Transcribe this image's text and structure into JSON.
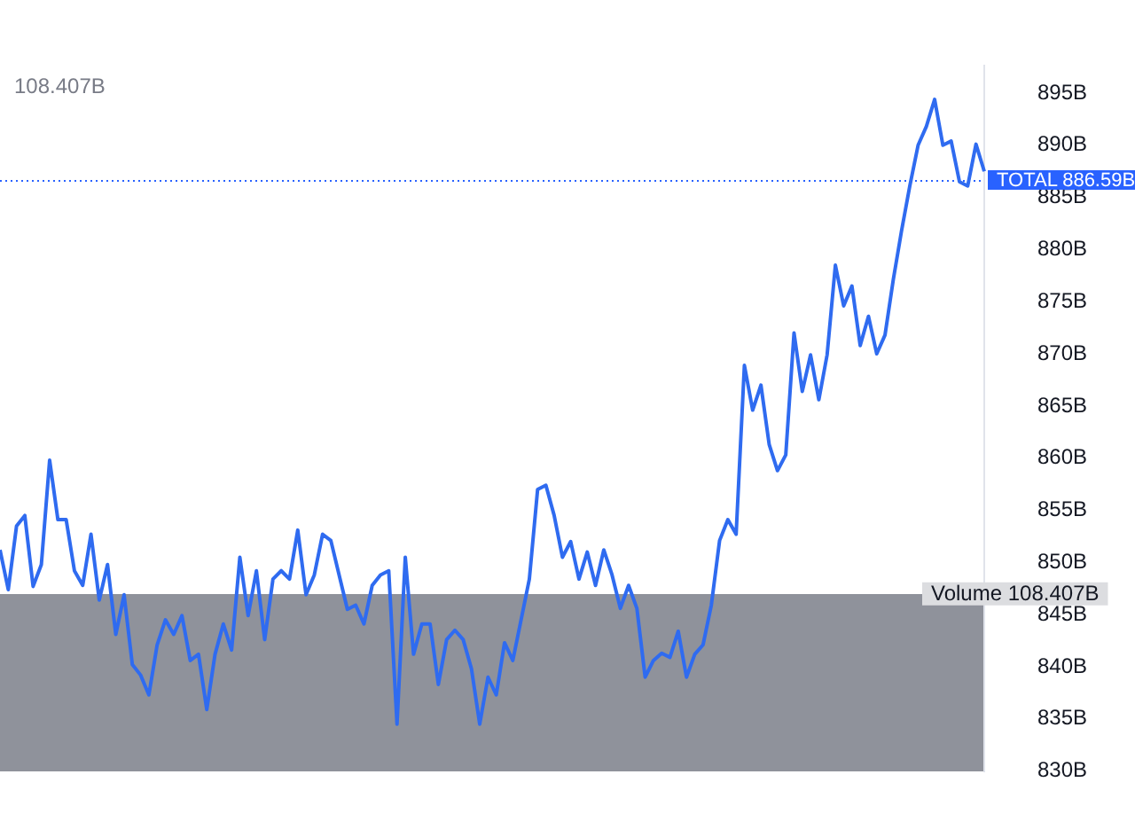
{
  "chart_data": {
    "type": "line",
    "ylim": [
      830,
      897.6
    ],
    "yticks": [
      {
        "value": 830,
        "label": "830B"
      },
      {
        "value": 835,
        "label": "835B"
      },
      {
        "value": 840,
        "label": "840B"
      },
      {
        "value": 845,
        "label": "845B"
      },
      {
        "value": 850,
        "label": "850B"
      },
      {
        "value": 855,
        "label": "855B"
      },
      {
        "value": 860,
        "label": "860B"
      },
      {
        "value": 865,
        "label": "865B"
      },
      {
        "value": 870,
        "label": "870B"
      },
      {
        "value": 875,
        "label": "875B"
      },
      {
        "value": 880,
        "label": "880B"
      },
      {
        "value": 885,
        "label": "885B"
      },
      {
        "value": 890,
        "label": "890B"
      },
      {
        "value": 895,
        "label": "895B"
      }
    ],
    "tick_labels": "y",
    "grid": false,
    "legend": false,
    "marker": "none",
    "annotations": [
      "108.407B",
      "Volume 108.407B"
    ],
    "ref_lines": [
      {
        "axis": "y",
        "value": 886.59,
        "label": "TOTAL 886.59B",
        "color": "#2962ff",
        "line_style": "dotted"
      }
    ],
    "categories": [
      null,
      null,
      null,
      null,
      null,
      null,
      null,
      null,
      null,
      null,
      null,
      null,
      null,
      null,
      null,
      null,
      null,
      null,
      null,
      null,
      null,
      null,
      null,
      null,
      null,
      null,
      null,
      null,
      null,
      null,
      null,
      null,
      null,
      null,
      null,
      null,
      null,
      null,
      null,
      null,
      null,
      null,
      null,
      null,
      null,
      null,
      null,
      null,
      null,
      null,
      null,
      null,
      null,
      null,
      null,
      null,
      null,
      null,
      null,
      null,
      null,
      null,
      null,
      null,
      null,
      null,
      null,
      null,
      null,
      null,
      null,
      null,
      null,
      null,
      null,
      null,
      null,
      null,
      null,
      null,
      null,
      null,
      null,
      null,
      null,
      null,
      null,
      null,
      null,
      null,
      null,
      null,
      null,
      null,
      null,
      null,
      null,
      null,
      null,
      null,
      null,
      null,
      null,
      null,
      null,
      null,
      null,
      null,
      null,
      null,
      null,
      null,
      null,
      null,
      null,
      null,
      null,
      null,
      null,
      null
    ],
    "series": [
      {
        "color": "#2f6bf0",
        "values": [
          851.2,
          847.4,
          853.5,
          854.5,
          847.7,
          849.8,
          859.8,
          854.1,
          854.1,
          849.2,
          847.8,
          852.7,
          846.4,
          849.8,
          843.1,
          846.9,
          840.2,
          839.2,
          837.3,
          842.1,
          844.5,
          843.1,
          844.9,
          840.6,
          841.2,
          835.9,
          841.2,
          844.1,
          841.6,
          850.5,
          844.9,
          849.2,
          842.6,
          848.4,
          849.2,
          848.4,
          853.1,
          846.9,
          848.8,
          852.7,
          852.1,
          848.8,
          845.5,
          845.9,
          844.1,
          847.8,
          848.8,
          849.2,
          834.5,
          850.5,
          841.2,
          844.1,
          844.1,
          838.3,
          842.6,
          843.5,
          842.6,
          839.8,
          834.5,
          839.0,
          837.3,
          842.3,
          840.6,
          844.5,
          848.4,
          857.0,
          857.4,
          854.5,
          850.5,
          852.0,
          848.4,
          851.0,
          847.8,
          851.2,
          848.8,
          845.6,
          847.8,
          845.6,
          839.0,
          840.6,
          841.3,
          840.9,
          843.4,
          839.0,
          841.2,
          842.1,
          845.9,
          852.1,
          854.1,
          852.7,
          868.9,
          864.6,
          867.0,
          861.3,
          858.8,
          860.3,
          872.0,
          866.4,
          869.9,
          865.6,
          869.9,
          878.5,
          874.6,
          876.5,
          870.8,
          873.6,
          870.0,
          871.8,
          877.1,
          881.8,
          886.1,
          890.0,
          891.8,
          894.4,
          890.0,
          890.4,
          886.5,
          886.1,
          890.1,
          887.5
        ]
      }
    ]
  }
}
